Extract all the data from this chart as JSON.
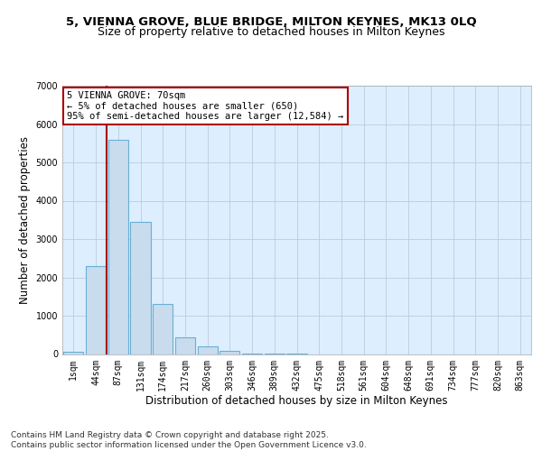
{
  "title_line1": "5, VIENNA GROVE, BLUE BRIDGE, MILTON KEYNES, MK13 0LQ",
  "title_line2": "Size of property relative to detached houses in Milton Keynes",
  "xlabel": "Distribution of detached houses by size in Milton Keynes",
  "ylabel": "Number of detached properties",
  "categories": [
    "1sqm",
    "44sqm",
    "87sqm",
    "131sqm",
    "174sqm",
    "217sqm",
    "260sqm",
    "303sqm",
    "346sqm",
    "389sqm",
    "432sqm",
    "475sqm",
    "518sqm",
    "561sqm",
    "604sqm",
    "648sqm",
    "691sqm",
    "734sqm",
    "777sqm",
    "820sqm",
    "863sqm"
  ],
  "values": [
    50,
    2300,
    5600,
    3450,
    1310,
    430,
    200,
    90,
    20,
    4,
    2,
    0,
    0,
    0,
    0,
    0,
    0,
    0,
    0,
    0,
    0
  ],
  "bar_color": "#c8dcee",
  "bar_edge_color": "#6aafd4",
  "plot_bg_color": "#ddeeff",
  "grid_color": "#bbccdd",
  "red_line_x": 1.5,
  "annotation_text": "5 VIENNA GROVE: 70sqm\n← 5% of detached houses are smaller (650)\n95% of semi-detached houses are larger (12,584) →",
  "annotation_box_color": "#ffffff",
  "annotation_box_edge_color": "#aa0000",
  "footer_text": "Contains HM Land Registry data © Crown copyright and database right 2025.\nContains public sector information licensed under the Open Government Licence v3.0.",
  "ylim": [
    0,
    7000
  ],
  "yticks": [
    0,
    1000,
    2000,
    3000,
    4000,
    5000,
    6000,
    7000
  ],
  "title_fontsize": 9.5,
  "subtitle_fontsize": 9,
  "axis_label_fontsize": 8.5,
  "tick_fontsize": 7,
  "annotation_fontsize": 7.5,
  "footer_fontsize": 6.5
}
